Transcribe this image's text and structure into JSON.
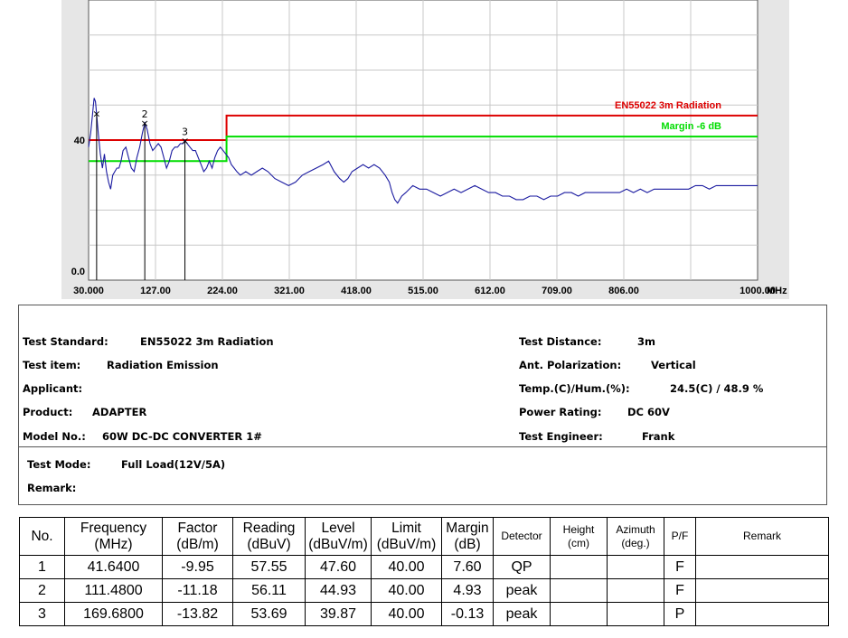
{
  "chart_data": {
    "type": "line",
    "x_unit": "MHz",
    "xlim": [
      30,
      1000
    ],
    "ylim": [
      0,
      80
    ],
    "x_ticks": [
      "30.000",
      "127.00",
      "224.00",
      "321.00",
      "418.00",
      "515.00",
      "612.00",
      "709.00",
      "806.00",
      "1000.00"
    ],
    "x_tick_values": [
      30,
      127,
      224,
      321,
      418,
      515,
      612,
      709,
      806,
      1000
    ],
    "y_tick_labels": [
      {
        "label": "40",
        "value": 40
      },
      {
        "label": "0.0",
        "value": 0
      }
    ],
    "grid": true,
    "limit_lines": [
      {
        "name": "EN55022 3m Radiation",
        "color": "#dd0000",
        "points": [
          [
            30,
            40
          ],
          [
            230,
            40
          ],
          [
            230,
            47
          ],
          [
            1000,
            47
          ]
        ]
      },
      {
        "name": "Margin -6 dB",
        "color": "#00dd00",
        "points": [
          [
            30,
            34
          ],
          [
            230,
            34
          ],
          [
            230,
            41
          ],
          [
            1000,
            41
          ]
        ]
      }
    ],
    "trace": {
      "color": "#1a1aa0",
      "points": [
        [
          30,
          38
        ],
        [
          33,
          42
        ],
        [
          36,
          48
        ],
        [
          38,
          52
        ],
        [
          40,
          51
        ],
        [
          41.6,
          47.6
        ],
        [
          44,
          42
        ],
        [
          47,
          36
        ],
        [
          50,
          32
        ],
        [
          53,
          36
        ],
        [
          56,
          31
        ],
        [
          59,
          28
        ],
        [
          62,
          26
        ],
        [
          65,
          30
        ],
        [
          68,
          31
        ],
        [
          71,
          32
        ],
        [
          74,
          32
        ],
        [
          77,
          34
        ],
        [
          80,
          37
        ],
        [
          84,
          38
        ],
        [
          88,
          35
        ],
        [
          92,
          32
        ],
        [
          96,
          31
        ],
        [
          100,
          35
        ],
        [
          104,
          38
        ],
        [
          108,
          42
        ],
        [
          111.5,
          44.9
        ],
        [
          115,
          43
        ],
        [
          119,
          39
        ],
        [
          123,
          37
        ],
        [
          127,
          38
        ],
        [
          131,
          39
        ],
        [
          135,
          38
        ],
        [
          139,
          35
        ],
        [
          143,
          32
        ],
        [
          147,
          34
        ],
        [
          151,
          37
        ],
        [
          155,
          38
        ],
        [
          159,
          38
        ],
        [
          163,
          39
        ],
        [
          167,
          39
        ],
        [
          169.7,
          39.9
        ],
        [
          173,
          39
        ],
        [
          177,
          38
        ],
        [
          181,
          37
        ],
        [
          185,
          37
        ],
        [
          189,
          35
        ],
        [
          193,
          33
        ],
        [
          197,
          31
        ],
        [
          201,
          32
        ],
        [
          205,
          34
        ],
        [
          209,
          32
        ],
        [
          213,
          35
        ],
        [
          217,
          37
        ],
        [
          221,
          38
        ],
        [
          225,
          37
        ],
        [
          229,
          36
        ],
        [
          233,
          35
        ],
        [
          237,
          33
        ],
        [
          241,
          32
        ],
        [
          245,
          31
        ],
        [
          250,
          30
        ],
        [
          258,
          31
        ],
        [
          266,
          30
        ],
        [
          274,
          31
        ],
        [
          282,
          32
        ],
        [
          290,
          31
        ],
        [
          300,
          29
        ],
        [
          310,
          28
        ],
        [
          320,
          27
        ],
        [
          330,
          28
        ],
        [
          340,
          30
        ],
        [
          350,
          31
        ],
        [
          360,
          32
        ],
        [
          370,
          33
        ],
        [
          378,
          34
        ],
        [
          386,
          31
        ],
        [
          394,
          29
        ],
        [
          400,
          28
        ],
        [
          406,
          29
        ],
        [
          412,
          31
        ],
        [
          420,
          32
        ],
        [
          428,
          33
        ],
        [
          436,
          32
        ],
        [
          444,
          33
        ],
        [
          452,
          32
        ],
        [
          460,
          30
        ],
        [
          466,
          28
        ],
        [
          470,
          25
        ],
        [
          474,
          23
        ],
        [
          478,
          22
        ],
        [
          484,
          24
        ],
        [
          490,
          25
        ],
        [
          500,
          27
        ],
        [
          510,
          26
        ],
        [
          520,
          26
        ],
        [
          530,
          25
        ],
        [
          540,
          24
        ],
        [
          550,
          25
        ],
        [
          560,
          26
        ],
        [
          570,
          25
        ],
        [
          580,
          26
        ],
        [
          590,
          27
        ],
        [
          600,
          26
        ],
        [
          610,
          25
        ],
        [
          620,
          25
        ],
        [
          630,
          24
        ],
        [
          640,
          24
        ],
        [
          650,
          23
        ],
        [
          660,
          23
        ],
        [
          670,
          24
        ],
        [
          680,
          24
        ],
        [
          690,
          23
        ],
        [
          700,
          24
        ],
        [
          710,
          24
        ],
        [
          720,
          25
        ],
        [
          730,
          25
        ],
        [
          740,
          24
        ],
        [
          750,
          25
        ],
        [
          760,
          25
        ],
        [
          770,
          25
        ],
        [
          780,
          25
        ],
        [
          790,
          25
        ],
        [
          800,
          25
        ],
        [
          810,
          26
        ],
        [
          820,
          25
        ],
        [
          830,
          26
        ],
        [
          840,
          25
        ],
        [
          850,
          26
        ],
        [
          860,
          26
        ],
        [
          870,
          26
        ],
        [
          880,
          26
        ],
        [
          890,
          26
        ],
        [
          900,
          26
        ],
        [
          910,
          27
        ],
        [
          920,
          27
        ],
        [
          930,
          26
        ],
        [
          940,
          27
        ],
        [
          950,
          27
        ],
        [
          960,
          27
        ],
        [
          970,
          27
        ],
        [
          980,
          27
        ],
        [
          990,
          27
        ],
        [
          1000,
          27
        ]
      ]
    },
    "markers": [
      {
        "label": "",
        "x": 41.64,
        "y": 47.6
      },
      {
        "label": "2",
        "x": 111.48,
        "y": 44.93
      },
      {
        "label": "3",
        "x": 169.68,
        "y": 39.87
      }
    ]
  },
  "info": {
    "left": [
      {
        "label": "Test Standard:",
        "value": "EN55022 3m Radiation"
      },
      {
        "label": "Test item:",
        "value": "Radiation Emission"
      },
      {
        "label": "Applicant:",
        "value": ""
      },
      {
        "label": "Product:",
        "value": "ADAPTER"
      },
      {
        "label": "Model No.:",
        "value": "60W DC-DC CONVERTER 1#"
      }
    ],
    "right": [
      {
        "label": "Test Distance:",
        "value": "3m"
      },
      {
        "label": "Ant. Polarization:",
        "value": "Vertical"
      },
      {
        "label": "Temp.(C)/Hum.(%):",
        "value": "24.5(C) / 48.9 %"
      },
      {
        "label": "Power Rating:",
        "value": "DC 60V"
      },
      {
        "label": "Test Engineer:",
        "value": "Frank"
      }
    ]
  },
  "mode": {
    "test_mode_label": "Test Mode:",
    "test_mode_value": "Full Load(12V/5A)",
    "remark_label": "Remark:",
    "remark_value": ""
  },
  "table": {
    "headers": [
      {
        "line1": "No.",
        "line2": ""
      },
      {
        "line1": "Frequency",
        "line2": "(MHz)"
      },
      {
        "line1": "Factor",
        "line2": "(dB/m)"
      },
      {
        "line1": "Reading",
        "line2": "(dBuV)"
      },
      {
        "line1": "Level",
        "line2": "(dBuV/m)"
      },
      {
        "line1": "Limit",
        "line2": "(dBuV/m)"
      },
      {
        "line1": "Margin",
        "line2": "(dB)"
      },
      {
        "line1": "Detector",
        "line2": ""
      },
      {
        "line1": "Height",
        "line2": "(cm)"
      },
      {
        "line1": "Azimuth",
        "line2": "(deg.)"
      },
      {
        "line1": "P/F",
        "line2": ""
      },
      {
        "line1": "Remark",
        "line2": ""
      }
    ],
    "rows": [
      [
        "1",
        "41.6400",
        "-9.95",
        "57.55",
        "47.60",
        "40.00",
        "7.60",
        "QP",
        "",
        "",
        "F",
        ""
      ],
      [
        "2",
        "111.4800",
        "-11.18",
        "56.11",
        "44.93",
        "40.00",
        "4.93",
        "peak",
        "",
        "",
        "F",
        ""
      ],
      [
        "3",
        "169.6800",
        "-13.82",
        "53.69",
        "39.87",
        "40.00",
        "-0.13",
        "peak",
        "",
        "",
        "P",
        ""
      ]
    ]
  }
}
